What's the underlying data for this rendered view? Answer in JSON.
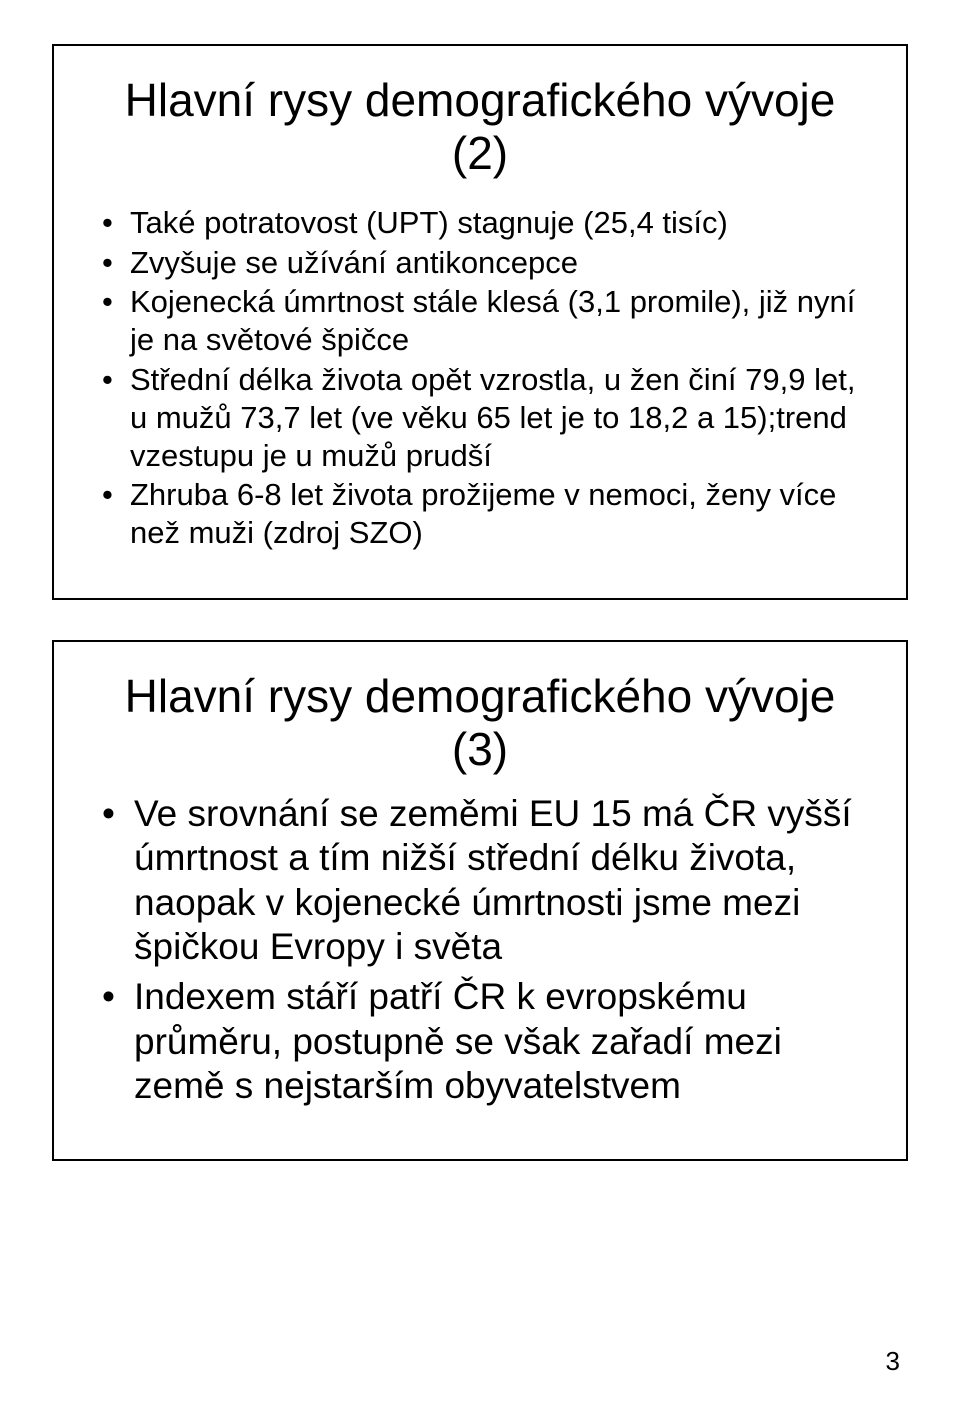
{
  "background_color": "#ffffff",
  "text_color": "#000000",
  "border_color": "#000000",
  "slide1": {
    "title": "Hlavní rysy demografického vývoje (2)",
    "bullets": [
      "Také potratovost (UPT) stagnuje (25,4 tisíc)",
      "Zvyšuje se užívání antikoncepce",
      "Kojenecká úmrtnost stále klesá (3,1 promile), již nyní je na světové špičce",
      "Střední délka života opět vzrostla, u žen činí 79,9 let,  u mužů 73,7 let (ve věku 65 let je to 18,2 a 15);trend vzestupu je u mužů prudší",
      "Zhruba 6-8 let života prožijeme v nemoci, ženy více než muži (zdroj SZO)"
    ]
  },
  "slide2": {
    "title": "Hlavní rysy demografického vývoje (3)",
    "bullets": [
      "Ve srovnání se zeměmi EU 15  má ČR vyšší úmrtnost a tím nižší střední délku života, naopak  v kojenecké úmrtnosti jsme mezi špičkou Evropy i světa",
      "Indexem stáří patří ČR k evropskému průměru, postupně se však zařadí mezi země s nejstarším obyvatelstvem"
    ]
  },
  "page_number": "3"
}
